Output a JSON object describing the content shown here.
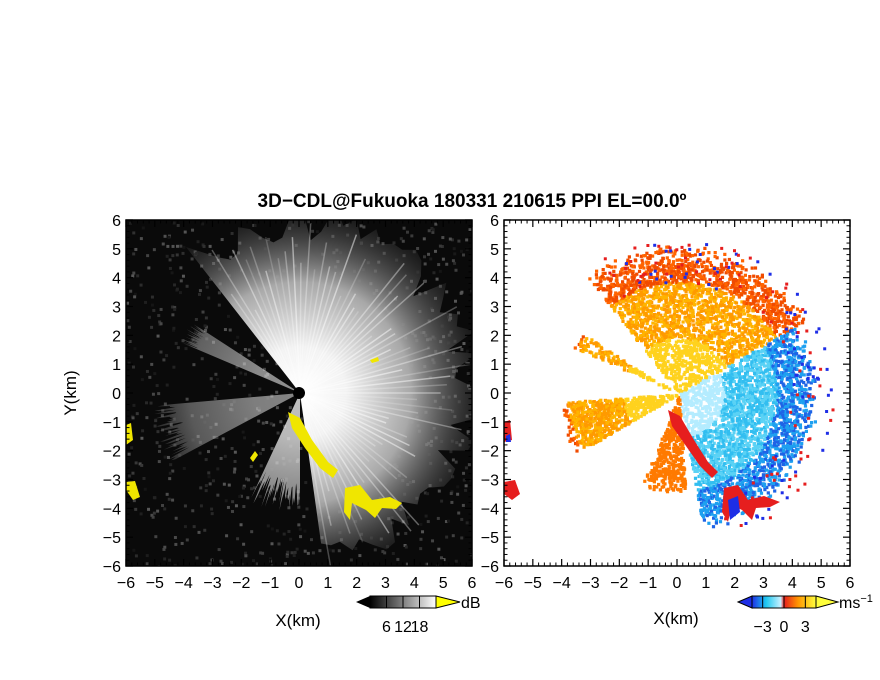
{
  "figure": {
    "title": "3D−CDL@Fukuoka 180331 210615 PPI EL=00.0º"
  },
  "chart_data": [
    {
      "type": "heatmap",
      "name": "reflectivity-ppi",
      "xlabel": "X(km)",
      "ylabel": "Y(km)",
      "xlim": [
        -6,
        6
      ],
      "ylim": [
        -6,
        6
      ],
      "xticks": [
        "−6",
        "−5",
        "−4",
        "−3",
        "−2",
        "−1",
        "0",
        "1",
        "2",
        "3",
        "4",
        "5",
        "6"
      ],
      "yticks": [
        "6",
        "5",
        "4",
        "3",
        "2",
        "1",
        "0",
        "−1",
        "−2",
        "−3",
        "−4",
        "−5",
        "−6"
      ],
      "colorbar": {
        "unit": "dB",
        "ticks": [
          "6",
          "12",
          "18"
        ],
        "range": [
          0,
          24
        ],
        "colors": [
          "#000000",
          "#ffffff"
        ],
        "over_color": "#ffff00"
      },
      "background_color": "#0a0a0a",
      "highlight_color": "#f0e600"
    },
    {
      "type": "heatmap",
      "name": "doppler-velocity-ppi",
      "xlabel": "X(km)",
      "xlim": [
        -6,
        6
      ],
      "ylim": [
        -6,
        6
      ],
      "xticks": [
        "−6",
        "−5",
        "−4",
        "−3",
        "−2",
        "−1",
        "0",
        "1",
        "2",
        "3",
        "4",
        "5",
        "6"
      ],
      "yticks": [
        "6",
        "5",
        "4",
        "3",
        "2",
        "1",
        "0",
        "−1",
        "−2",
        "−3",
        "−4",
        "−5",
        "−6"
      ],
      "colorbar": {
        "unit": "ms",
        "unit_exponent": "−1",
        "ticks": [
          "−3",
          "0",
          "3"
        ],
        "range": [
          -4.5,
          4.5
        ],
        "colors": [
          "#1e2ee6",
          "#1ec8f0",
          "#c8f0ff",
          "#e61e1e",
          "#ff9600",
          "#ffff3c"
        ]
      },
      "approach_color": "#20c0f0",
      "recede_color": "#ff8000"
    }
  ]
}
